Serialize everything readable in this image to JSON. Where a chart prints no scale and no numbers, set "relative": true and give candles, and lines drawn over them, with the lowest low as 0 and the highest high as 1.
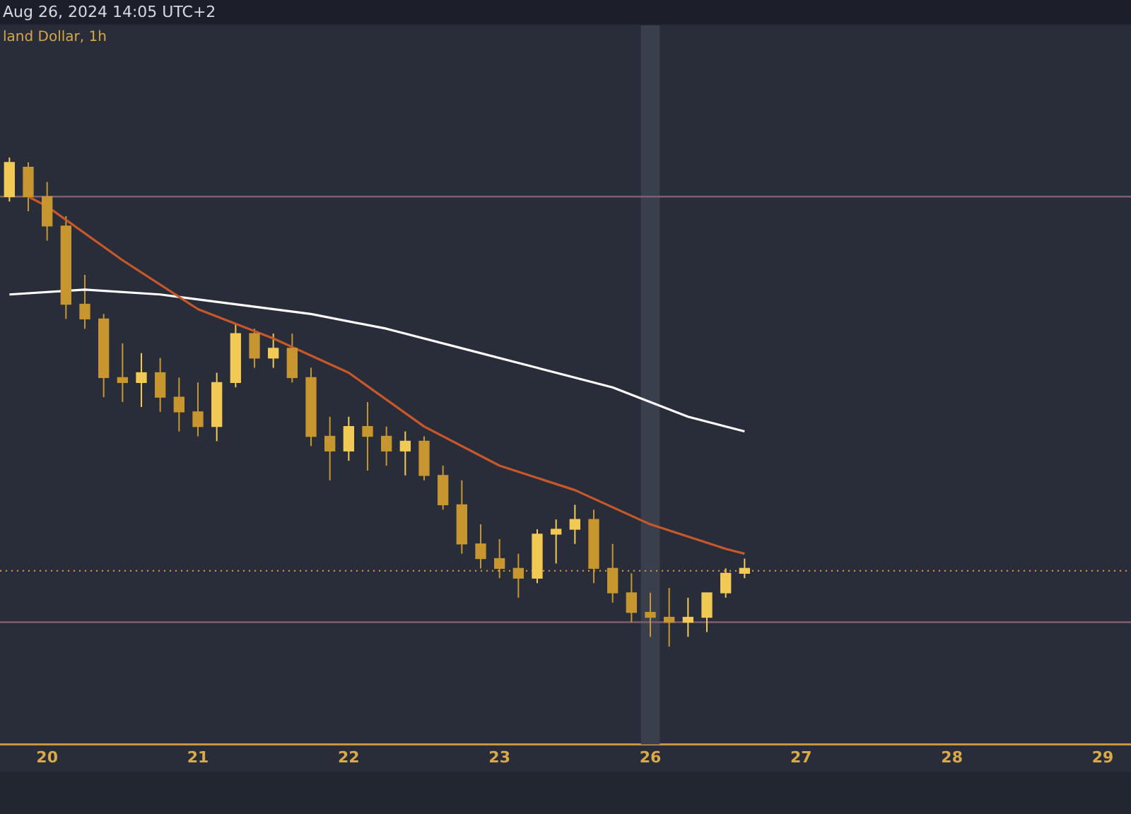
{
  "chart_data": {
    "type": "candlestick",
    "title": "land Dollar, 1h",
    "subtitle": "Aug 26, 2024 14:05 UTC+2",
    "relative": true,
    "categories": [
      null,
      null,
      "20",
      null,
      null,
      null,
      null,
      null,
      null,
      null,
      "21",
      null,
      null,
      null,
      null,
      null,
      null,
      null,
      "22",
      null,
      null,
      null,
      null,
      null,
      null,
      null,
      "23",
      null,
      null,
      null,
      null,
      null,
      null,
      null,
      "26",
      null,
      null,
      null,
      null,
      null,
      null,
      null,
      "27",
      null,
      null,
      null,
      null,
      null,
      null,
      null,
      "28",
      null,
      null,
      null,
      null,
      null,
      null,
      null,
      "29",
      null
    ],
    "ohlc": [
      [
        0.92,
        1.0,
        0.91,
        0.99
      ],
      [
        0.98,
        0.99,
        0.89,
        0.92
      ],
      [
        0.92,
        0.95,
        0.83,
        0.86
      ],
      [
        0.86,
        0.88,
        0.67,
        0.7
      ],
      [
        0.7,
        0.76,
        0.65,
        0.67
      ],
      [
        0.67,
        0.68,
        0.51,
        0.55
      ],
      [
        0.55,
        0.62,
        0.5,
        0.54
      ],
      [
        0.54,
        0.6,
        0.49,
        0.56
      ],
      [
        0.56,
        0.59,
        0.48,
        0.51
      ],
      [
        0.51,
        0.55,
        0.44,
        0.48
      ],
      [
        0.48,
        0.54,
        0.43,
        0.45
      ],
      [
        0.45,
        0.56,
        0.42,
        0.54
      ],
      [
        0.54,
        0.66,
        0.53,
        0.64
      ],
      [
        0.64,
        0.65,
        0.57,
        0.59
      ],
      [
        0.59,
        0.64,
        0.57,
        0.61
      ],
      [
        0.61,
        0.64,
        0.54,
        0.55
      ],
      [
        0.55,
        0.57,
        0.41,
        0.43
      ],
      [
        0.43,
        0.47,
        0.34,
        0.4
      ],
      [
        0.4,
        0.47,
        0.38,
        0.45
      ],
      [
        0.45,
        0.5,
        0.36,
        0.43
      ],
      [
        0.43,
        0.45,
        0.37,
        0.4
      ],
      [
        0.4,
        0.44,
        0.35,
        0.42
      ],
      [
        0.42,
        0.43,
        0.34,
        0.35
      ],
      [
        0.35,
        0.37,
        0.28,
        0.29
      ],
      [
        0.29,
        0.34,
        0.19,
        0.21
      ],
      [
        0.21,
        0.25,
        0.16,
        0.18
      ],
      [
        0.18,
        0.22,
        0.14,
        0.16
      ],
      [
        0.16,
        0.19,
        0.1,
        0.14
      ],
      [
        0.14,
        0.24,
        0.13,
        0.23
      ],
      [
        0.23,
        0.26,
        0.17,
        0.24
      ],
      [
        0.24,
        0.29,
        0.21,
        0.26
      ],
      [
        0.26,
        0.28,
        0.13,
        0.16
      ],
      [
        0.16,
        0.21,
        0.09,
        0.11
      ],
      [
        0.11,
        0.15,
        0.05,
        0.07
      ],
      [
        0.07,
        0.11,
        0.02,
        0.06
      ],
      [
        0.06,
        0.12,
        0.0,
        0.05
      ],
      [
        0.05,
        0.1,
        0.02,
        0.06
      ],
      [
        0.06,
        0.11,
        0.03,
        0.11
      ],
      [
        0.11,
        0.16,
        0.1,
        0.15
      ],
      [
        0.15,
        0.18,
        0.14,
        0.16
      ],
      null,
      null,
      null,
      null,
      null,
      null,
      null,
      null,
      null,
      null,
      null,
      null,
      null,
      null,
      null,
      null,
      null,
      null,
      null,
      null
    ],
    "colors": [
      "#f2c955",
      "#c8962e",
      "#c8962e",
      "#c8962e",
      "#c8962e",
      "#c8962e",
      "#c8962e",
      "#f2c955",
      "#c8962e",
      "#c8962e",
      "#c8962e",
      "#f2c955",
      "#f2c955",
      "#c8962e",
      "#f2c955",
      "#c8962e",
      "#c8962e",
      "#c8962e",
      "#f2c955",
      "#c8962e",
      "#c8962e",
      "#f2c955",
      "#c8962e",
      "#c8962e",
      "#c8962e",
      "#c8962e",
      "#c8962e",
      "#c8962e",
      "#f2c955",
      "#f2c955",
      "#f2c955",
      "#c8962e",
      "#c8962e",
      "#c8962e",
      "#c8962e",
      "#c8962e",
      "#f2c955",
      "#f2c955",
      "#f2c955",
      "#f2c955",
      null,
      null,
      null,
      null,
      null,
      null,
      null,
      null,
      null,
      null,
      null,
      null,
      null,
      null,
      null,
      null,
      null,
      null,
      null,
      null
    ],
    "series": [
      {
        "type": "line",
        "color": "#c8582a",
        "values": [
          null,
          0.92,
          0.9,
          null,
          null,
          null,
          0.79,
          null,
          null,
          null,
          0.69,
          null,
          null,
          null,
          0.63,
          null,
          null,
          null,
          0.56,
          null,
          null,
          null,
          0.45,
          null,
          null,
          null,
          0.37,
          null,
          null,
          null,
          0.32,
          null,
          null,
          null,
          0.25,
          null,
          null,
          null,
          0.2,
          0.19,
          null,
          null,
          null,
          null,
          null,
          null,
          null,
          null,
          null,
          null,
          null,
          null,
          null,
          null,
          null,
          null,
          null,
          null,
          null,
          null
        ]
      },
      {
        "type": "line",
        "color": "#ffffff",
        "values": [
          0.72,
          null,
          null,
          null,
          0.73,
          null,
          null,
          null,
          0.72,
          null,
          null,
          null,
          0.7,
          null,
          null,
          null,
          0.68,
          null,
          null,
          null,
          0.65,
          null,
          null,
          null,
          0.61,
          null,
          null,
          null,
          0.57,
          null,
          null,
          null,
          0.53,
          null,
          null,
          null,
          0.47,
          null,
          null,
          0.44,
          null,
          null,
          null,
          null,
          null,
          null,
          null,
          null,
          null,
          null,
          null,
          null,
          null,
          null,
          null,
          null,
          null,
          null,
          null,
          null
        ]
      }
    ],
    "tick_labels": "x",
    "ref_lines": [
      {
        "axis": "y",
        "value": 0.92,
        "color": "#7d5f6e"
      },
      {
        "axis": "y",
        "value": 0.155,
        "color": "#c8963c",
        "line_style": "dotted"
      },
      {
        "axis": "y",
        "value": 0.05,
        "color": "#7d5f6e"
      }
    ],
    "bands": [
      {
        "axis": "x",
        "from": "26",
        "to": "26",
        "color": "#3a3f4e"
      }
    ]
  }
}
